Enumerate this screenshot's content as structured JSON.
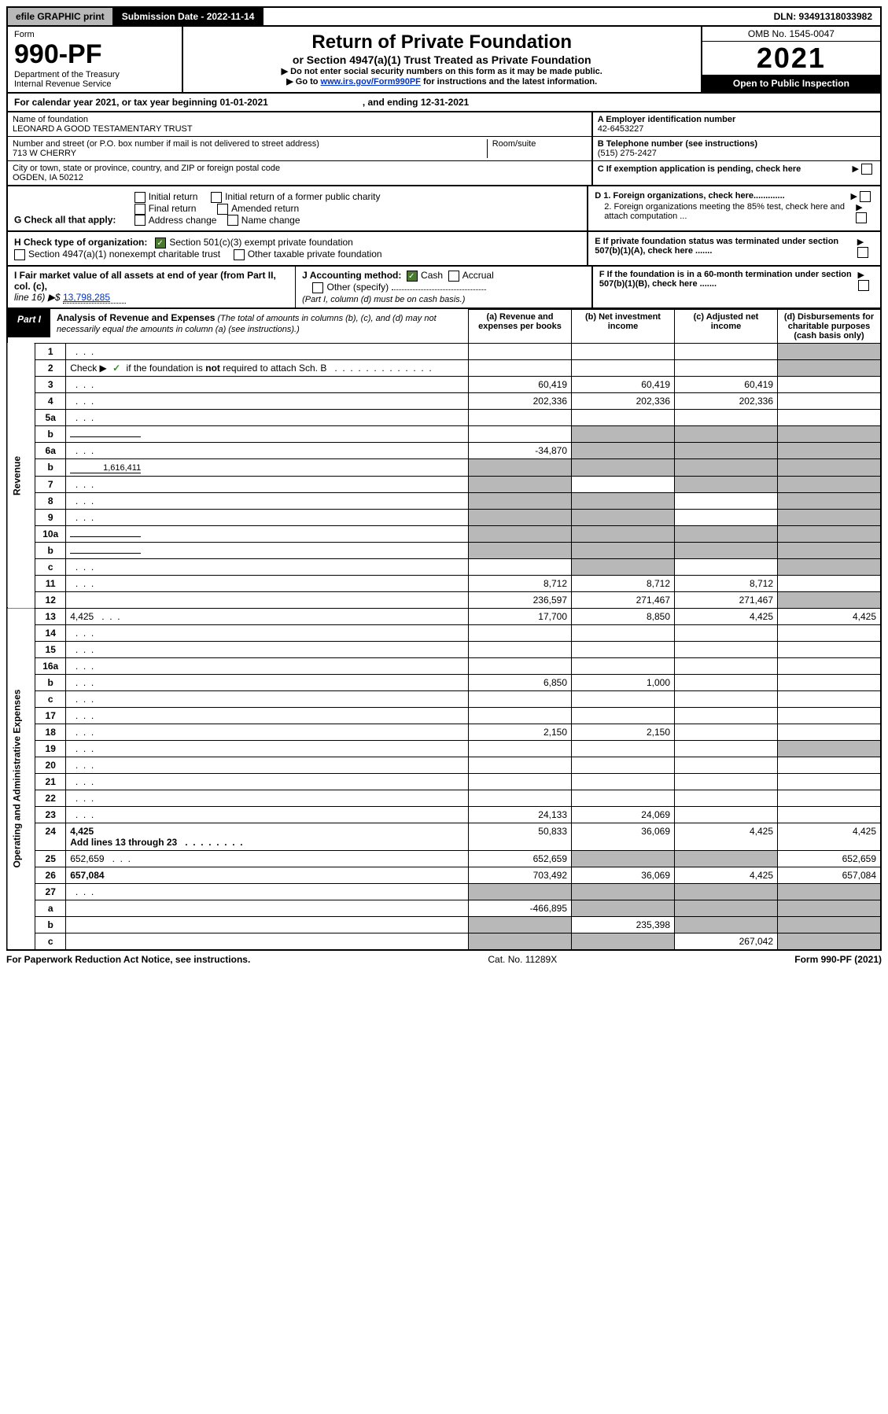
{
  "topbar": {
    "efile": "efile GRAPHIC print",
    "submission": "Submission Date - 2022-11-14",
    "dln": "DLN: 93491318033982"
  },
  "header": {
    "form_label": "Form",
    "form_no": "990-PF",
    "dept1": "Department of the Treasury",
    "dept2": "Internal Revenue Service",
    "title": "Return of Private Foundation",
    "subtitle": "or Section 4947(a)(1) Trust Treated as Private Foundation",
    "note1": "Do not enter social security numbers on this form as it may be made public.",
    "note2_pre": "Go to ",
    "note2_link": "www.irs.gov/Form990PF",
    "note2_post": " for instructions and the latest information.",
    "omb": "OMB No. 1545-0047",
    "year": "2021",
    "open_pub": "Open to Public Inspection"
  },
  "calyear": {
    "text": "For calendar year 2021, or tax year beginning 01-01-2021",
    "ending": ", and ending 12-31-2021"
  },
  "info": {
    "name_lbl": "Name of foundation",
    "name": "LEONARD A GOOD TESTAMENTARY TRUST",
    "addr_lbl": "Number and street (or P.O. box number if mail is not delivered to street address)",
    "addr": "713 W CHERRY",
    "room_lbl": "Room/suite",
    "city_lbl": "City or town, state or province, country, and ZIP or foreign postal code",
    "city": "OGDEN, IA  50212",
    "a_lbl": "A Employer identification number",
    "a_val": "42-6453227",
    "b_lbl": "B Telephone number (see instructions)",
    "b_val": "(515) 275-2427",
    "c_lbl": "C If exemption application is pending, check here"
  },
  "g": {
    "label": "G Check all that apply:",
    "o1": "Initial return",
    "o2": "Initial return of a former public charity",
    "o3": "Final return",
    "o4": "Amended return",
    "o5": "Address change",
    "o6": "Name change"
  },
  "d": {
    "d1": "D 1. Foreign organizations, check here.............",
    "d2": "2. Foreign organizations meeting the 85% test, check here and attach computation ..."
  },
  "h": {
    "label": "H Check type of organization:",
    "o1": "Section 501(c)(3) exempt private foundation",
    "o2": "Section 4947(a)(1) nonexempt charitable trust",
    "o3": "Other taxable private foundation"
  },
  "e": {
    "text": "E  If private foundation status was terminated under section 507(b)(1)(A), check here ......."
  },
  "i": {
    "label": "I Fair market value of all assets at end of year (from Part II, col. (c),",
    "line": "line 16) ▶$",
    "val": "13,798,285"
  },
  "j": {
    "label": "J Accounting method:",
    "o1": "Cash",
    "o2": "Accrual",
    "o3": "Other (specify)",
    "note": "(Part I, column (d) must be on cash basis.)"
  },
  "f": {
    "text": "F  If the foundation is in a 60-month termination under section 507(b)(1)(B), check here ......."
  },
  "part1": {
    "badge": "Part I",
    "title": "Analysis of Revenue and Expenses",
    "note": " (The total of amounts in columns (b), (c), and (d) may not necessarily equal the amounts in column (a) (see instructions).)",
    "col_a": "(a)   Revenue and expenses per books",
    "col_b": "(b)   Net investment income",
    "col_c": "(c)   Adjusted net income",
    "col_d": "(d)   Disbursements for charitable purposes (cash basis only)"
  },
  "side": {
    "revenue": "Revenue",
    "opex": "Operating and Administrative Expenses"
  },
  "rows": {
    "r1": {
      "n": "1",
      "d": "",
      "a": "",
      "b": "",
      "c": "",
      "dshade": true
    },
    "r2": {
      "n": "2",
      "d": "",
      " d2": " if the foundation is not required to attach Sch. B",
      "a": "",
      "b": "",
      "c": "",
      "dshade": true,
      "check": true,
      "allshade_right": true
    },
    "r3": {
      "n": "3",
      "d": "",
      "a": "60,419",
      "b": "60,419",
      "c": "60,419"
    },
    "r4": {
      "n": "4",
      "d": "",
      "a": "202,336",
      "b": "202,336",
      "c": "202,336"
    },
    "r5a": {
      "n": "5a",
      "d": "",
      "a": "",
      "b": "",
      "c": ""
    },
    "r5b": {
      "n": "b",
      "d": "",
      "a": "",
      "b": "",
      "c": "",
      "bshade": true,
      "cshade": true,
      "dshade": true,
      "inline": true
    },
    "r6a": {
      "n": "6a",
      "d": "",
      "a": "-34,870",
      "b": "",
      "c": "",
      "bshade": true,
      "cshade": true,
      "dshade": true
    },
    "r6b": {
      "n": "b",
      "d": "",
      "inline_val": "1,616,411",
      "a": "",
      "b": "",
      "c": "",
      "ashade": true,
      "bshade": true,
      "cshade": true,
      "dshade": true,
      "inline": true
    },
    "r7": {
      "n": "7",
      "d": "",
      "a": "",
      "b": "",
      "c": "",
      "ashade": true,
      "cshade": true,
      "dshade": true
    },
    "r8": {
      "n": "8",
      "d": "",
      "a": "",
      "b": "",
      "c": "",
      "ashade": true,
      "bshade": true,
      "dshade": true
    },
    "r9": {
      "n": "9",
      "d": "",
      "a": "",
      "b": "",
      "c": "",
      "ashade": true,
      "bshade": true,
      "dshade": true
    },
    "r10a": {
      "n": "10a",
      "d": "",
      "a": "",
      "b": "",
      "c": "",
      "ashade": true,
      "bshade": true,
      "cshade": true,
      "dshade": true,
      "inline": true
    },
    "r10b": {
      "n": "b",
      "d": "",
      "a": "",
      "b": "",
      "c": "",
      "ashade": true,
      "bshade": true,
      "cshade": true,
      "dshade": true,
      "inline": true
    },
    "r10c": {
      "n": "c",
      "d": "",
      "a": "",
      "b": "",
      "c": "",
      "bshade": true,
      "dshade": true
    },
    "r11": {
      "n": "11",
      "d": "",
      "a": "8,712",
      "b": "8,712",
      "c": "8,712"
    },
    "r12": {
      "n": "12",
      "d": "",
      "a": "236,597",
      "b": "271,467",
      "c": "271,467",
      "bold": true,
      "dshade": true
    },
    "r13": {
      "n": "13",
      "d": "4,425",
      "a": "17,700",
      "b": "8,850",
      "c": "4,425"
    },
    "r14": {
      "n": "14",
      "d": "",
      "a": "",
      "b": "",
      "c": ""
    },
    "r15": {
      "n": "15",
      "d": "",
      "a": "",
      "b": "",
      "c": ""
    },
    "r16a": {
      "n": "16a",
      "d": "",
      "a": "",
      "b": "",
      "c": ""
    },
    "r16b": {
      "n": "b",
      "d": "",
      "a": "6,850",
      "b": "1,000",
      "c": ""
    },
    "r16c": {
      "n": "c",
      "d": "",
      "a": "",
      "b": "",
      "c": ""
    },
    "r17": {
      "n": "17",
      "d": "",
      "a": "",
      "b": "",
      "c": ""
    },
    "r18": {
      "n": "18",
      "d": "",
      "a": "2,150",
      "b": "2,150",
      "c": ""
    },
    "r19": {
      "n": "19",
      "d": "",
      "a": "",
      "b": "",
      "c": "",
      "dshade": true
    },
    "r20": {
      "n": "20",
      "d": "",
      "a": "",
      "b": "",
      "c": ""
    },
    "r21": {
      "n": "21",
      "d": "",
      "a": "",
      "b": "",
      "c": ""
    },
    "r22": {
      "n": "22",
      "d": "",
      "a": "",
      "b": "",
      "c": ""
    },
    "r23": {
      "n": "23",
      "d": "",
      "a": "24,133",
      "b": "24,069",
      "c": ""
    },
    "r24": {
      "n": "24",
      "d": "4,425",
      "d2": "Add lines 13 through 23",
      "a": "50,833",
      "b": "36,069",
      "c": "4,425",
      "bold": true
    },
    "r25": {
      "n": "25",
      "d": "652,659",
      "a": "652,659",
      "b": "",
      "c": "",
      "bshade": true,
      "cshade": true
    },
    "r26": {
      "n": "26",
      "d": "657,084",
      "a": "703,492",
      "b": "36,069",
      "c": "4,425",
      "bold": true
    },
    "r27": {
      "n": "27",
      "d": "",
      "a": "",
      "b": "",
      "c": "",
      "ashade": true,
      "bshade": true,
      "cshade": true,
      "dshade": true
    },
    "r27a": {
      "n": "a",
      "d": "",
      "a": "-466,895",
      "b": "",
      "c": "",
      "bshade": true,
      "cshade": true,
      "dshade": true,
      "bold": true
    },
    "r27b": {
      "n": "b",
      "d": "",
      "a": "",
      "b": "235,398",
      "c": "",
      "ashade": true,
      "cshade": true,
      "dshade": true,
      "bold": true
    },
    "r27c": {
      "n": "c",
      "d": "",
      "a": "",
      "b": "",
      "c": "267,042",
      "ashade": true,
      "bshade": true,
      "dshade": true,
      "bold": true
    }
  },
  "footer": {
    "left": "For Paperwork Reduction Act Notice, see instructions.",
    "mid": "Cat. No. 11289X",
    "right": "Form 990-PF (2021)"
  },
  "row_order_rev": [
    "r1",
    "r2",
    "r3",
    "r4",
    "r5a",
    "r5b",
    "r6a",
    "r6b",
    "r7",
    "r8",
    "r9",
    "r10a",
    "r10b",
    "r10c",
    "r11",
    "r12"
  ],
  "row_order_exp": [
    "r13",
    "r14",
    "r15",
    "r16a",
    "r16b",
    "r16c",
    "r17",
    "r18",
    "r19",
    "r20",
    "r21",
    "r22",
    "r23",
    "r24",
    "r25",
    "r26",
    "r27",
    "r27a",
    "r27b",
    "r27c"
  ]
}
